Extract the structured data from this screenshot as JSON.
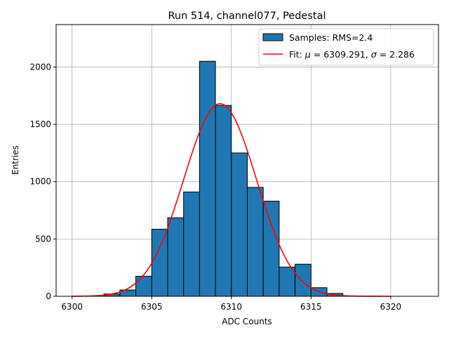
{
  "chart_data": {
    "type": "bar",
    "title": "Run 514, channel077, Pedestal",
    "xlabel": "ADC Counts",
    "ylabel": "Entries",
    "xlim": [
      6299.0,
      6323.0
    ],
    "ylim": [
      0,
      2370
    ],
    "xticks": [
      6300,
      6305,
      6310,
      6315,
      6320
    ],
    "yticks": [
      0,
      500,
      1000,
      1500,
      2000
    ],
    "grid": true,
    "legend_position": "top-right",
    "bins": [
      6302,
      6303,
      6304,
      6305,
      6306,
      6307,
      6308,
      6309,
      6310,
      6311,
      6312,
      6313,
      6314,
      6315,
      6316,
      6317
    ],
    "series": [
      {
        "name": "Samples: RMS=2.4",
        "kind": "histogram",
        "color": "#1f77b4",
        "edge_color": "#000000",
        "counts": [
          20,
          55,
          175,
          585,
          685,
          910,
          2050,
          1665,
          1250,
          950,
          830,
          255,
          280,
          75,
          25
        ]
      },
      {
        "name_prefix": "Fit: ",
        "name_mu_symbol": "μ",
        "name_mid": " = 6309.291, ",
        "name_sigma_symbol": "σ",
        "name_suffix": " = 2.286",
        "kind": "gaussian",
        "color": "#ff0000",
        "mu": 6309.291,
        "sigma": 2.286,
        "amplitude": 1680,
        "x_range": [
          6300,
          6320
        ]
      }
    ]
  }
}
